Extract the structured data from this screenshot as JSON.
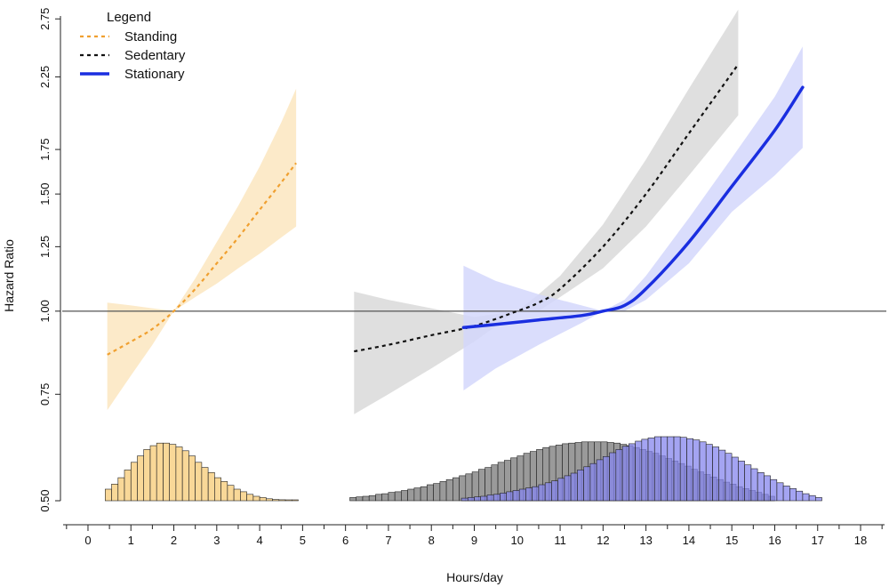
{
  "chart_data": {
    "type": "line",
    "xlabel": "Hours/day",
    "ylabel": "Hazard Ratio",
    "xlim": [
      -0.6,
      18.6
    ],
    "ylim": [
      0.5,
      2.9
    ],
    "y_scale": "log",
    "x_ticks": [
      0,
      1,
      2,
      3,
      4,
      5,
      6,
      7,
      8,
      9,
      10,
      11,
      12,
      13,
      14,
      15,
      16,
      17,
      18
    ],
    "y_ticks": [
      {
        "value": 0.5,
        "label": "0.50"
      },
      {
        "value": 0.75,
        "label": "0.75"
      },
      {
        "value": 1.0,
        "label": "1.00"
      },
      {
        "value": 1.25,
        "label": "1.25"
      },
      {
        "value": 1.5,
        "label": "1.50"
      },
      {
        "value": 1.75,
        "label": "1.75"
      },
      {
        "value": 2.25,
        "label": "2.25"
      },
      {
        "value": 2.75,
        "label": "2.75"
      }
    ],
    "reference_line": 1.0,
    "legend": {
      "title": "Legend",
      "position": "top-left",
      "entries": [
        {
          "label": "Standing",
          "color": "#f0a030",
          "style": "dotted"
        },
        {
          "label": "Sedentary",
          "color": "#111111",
          "style": "dotted"
        },
        {
          "label": "Stationary",
          "color": "#1a2ee0",
          "style": "solid"
        }
      ]
    },
    "series": [
      {
        "name": "Standing",
        "line_color": "#f0a030",
        "band_color": "#fbe6bf",
        "x": [
          0.45,
          1.0,
          1.5,
          2.0,
          2.5,
          3.0,
          3.5,
          4.0,
          4.5,
          4.85
        ],
        "y": [
          0.86,
          0.9,
          0.94,
          1.0,
          1.08,
          1.18,
          1.29,
          1.42,
          1.56,
          1.67
        ],
        "lower": [
          0.71,
          0.8,
          0.89,
          1.0,
          1.05,
          1.1,
          1.16,
          1.22,
          1.29,
          1.34
        ],
        "upper": [
          1.03,
          1.02,
          1.01,
          1.0,
          1.12,
          1.27,
          1.44,
          1.65,
          1.92,
          2.16
        ]
      },
      {
        "name": "Sedentary",
        "line_color": "#111111",
        "band_color": "#d9d9d9",
        "x": [
          6.2,
          7.0,
          8.0,
          9.0,
          10.0,
          10.5,
          11.0,
          12.0,
          13.0,
          14.0,
          15.15
        ],
        "y": [
          0.87,
          0.89,
          0.92,
          0.95,
          1.0,
          1.03,
          1.08,
          1.25,
          1.5,
          1.85,
          2.35
        ],
        "lower": [
          0.7,
          0.75,
          0.82,
          0.9,
          1.0,
          1.0,
          1.05,
          1.16,
          1.34,
          1.6,
          1.97
        ],
        "upper": [
          1.07,
          1.04,
          1.01,
          0.98,
          1.0,
          1.06,
          1.13,
          1.35,
          1.69,
          2.16,
          2.84
        ]
      },
      {
        "name": "Stationary",
        "line_color": "#1a2ee0",
        "band_color": "#d4d7fb",
        "x": [
          8.75,
          9.5,
          10.5,
          11.5,
          12.0,
          12.5,
          13.0,
          14.0,
          15.0,
          16.0,
          16.65
        ],
        "y": [
          0.945,
          0.955,
          0.97,
          0.985,
          1.0,
          1.02,
          1.08,
          1.27,
          1.54,
          1.87,
          2.17
        ],
        "lower": [
          0.76,
          0.82,
          0.89,
          0.96,
          1.0,
          1.0,
          1.04,
          1.18,
          1.41,
          1.6,
          1.76
        ],
        "upper": [
          1.17,
          1.11,
          1.06,
          1.02,
          1.0,
          1.04,
          1.13,
          1.38,
          1.7,
          2.1,
          2.5
        ]
      }
    ],
    "histograms": [
      {
        "name": "Standing",
        "fill": "#f9d898",
        "bin_start": 0.4,
        "bin_width": 0.15,
        "counts": [
          0.18,
          0.26,
          0.36,
          0.48,
          0.6,
          0.7,
          0.8,
          0.86,
          0.9,
          0.9,
          0.88,
          0.84,
          0.78,
          0.7,
          0.6,
          0.52,
          0.44,
          0.36,
          0.3,
          0.24,
          0.18,
          0.14,
          0.1,
          0.07,
          0.05,
          0.03,
          0.02,
          0.015,
          0.01,
          0.005
        ]
      },
      {
        "name": "Sedentary",
        "fill": "#9a9a9a",
        "bin_start": 6.1,
        "bin_width": 0.15,
        "counts": [
          0.05,
          0.06,
          0.07,
          0.08,
          0.1,
          0.11,
          0.13,
          0.14,
          0.16,
          0.18,
          0.2,
          0.22,
          0.25,
          0.27,
          0.3,
          0.33,
          0.36,
          0.39,
          0.42,
          0.45,
          0.49,
          0.52,
          0.56,
          0.6,
          0.63,
          0.67,
          0.7,
          0.74,
          0.77,
          0.8,
          0.83,
          0.85,
          0.87,
          0.89,
          0.9,
          0.91,
          0.92,
          0.92,
          0.92,
          0.92,
          0.91,
          0.9,
          0.88,
          0.86,
          0.83,
          0.8,
          0.77,
          0.74,
          0.7,
          0.66,
          0.62,
          0.58,
          0.54,
          0.49,
          0.45,
          0.41,
          0.37,
          0.33,
          0.29,
          0.26,
          0.22,
          0.19,
          0.16,
          0.13,
          0.1,
          0.07
        ]
      },
      {
        "name": "Stationary",
        "fill": "#8585ee",
        "bin_start": 8.7,
        "bin_width": 0.15,
        "counts": [
          0.04,
          0.05,
          0.06,
          0.07,
          0.09,
          0.1,
          0.12,
          0.14,
          0.16,
          0.18,
          0.2,
          0.22,
          0.25,
          0.28,
          0.31,
          0.35,
          0.39,
          0.43,
          0.48,
          0.53,
          0.58,
          0.64,
          0.69,
          0.75,
          0.8,
          0.85,
          0.89,
          0.93,
          0.96,
          0.98,
          1.0,
          1.0,
          1.0,
          1.0,
          0.99,
          0.97,
          0.95,
          0.92,
          0.88,
          0.84,
          0.79,
          0.74,
          0.68,
          0.62,
          0.56,
          0.5,
          0.44,
          0.39,
          0.33,
          0.28,
          0.23,
          0.19,
          0.15,
          0.11,
          0.08,
          0.05
        ]
      }
    ]
  }
}
